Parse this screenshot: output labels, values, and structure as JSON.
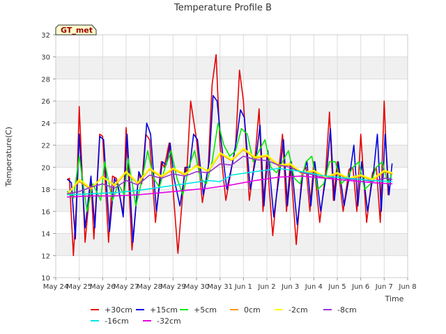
{
  "chart_data": {
    "type": "line",
    "title": "Temperature Profile B",
    "xlabel": "Time",
    "ylabel": "Temperature(C)",
    "badge": "GT_met",
    "x_start": "2024-05-24",
    "x_end": "2024-06-08",
    "xticks": [
      "May 24",
      "May 25",
      "May 26",
      "May 27",
      "May 28",
      "May 29",
      "May 30",
      "May 31",
      "Jun 1",
      "Jun 2",
      "Jun 3",
      "Jun 4",
      "Jun 5",
      "Jun 6",
      "Jun 7",
      "Jun 8"
    ],
    "ylim": [
      10,
      32
    ],
    "yticks": [
      10,
      12,
      14,
      16,
      18,
      20,
      22,
      24,
      26,
      28,
      30,
      32
    ],
    "grid": true,
    "banding": true,
    "legend_position": "bottom",
    "series": [
      {
        "name": "+30cm",
        "color": "#e60000",
        "width": 1.6,
        "x": [
          "2024-05-24T12:00",
          "2024-05-24T14:00",
          "2024-05-24T18:00",
          "2024-05-24T21:00",
          "2024-05-25T00:00",
          "2024-05-25T06:00",
          "2024-05-25T12:00",
          "2024-05-25T15:00",
          "2024-05-25T21:00",
          "2024-05-26T00:00",
          "2024-05-26T06:00",
          "2024-05-26T10:00",
          "2024-05-26T14:00",
          "2024-05-26T21:00",
          "2024-05-27T00:00",
          "2024-05-27T06:00",
          "2024-05-27T13:00",
          "2024-05-27T16:00",
          "2024-05-27T20:00",
          "2024-05-28T00:00",
          "2024-05-28T06:00",
          "2024-05-28T12:00",
          "2024-05-28T15:00",
          "2024-05-28T20:00",
          "2024-05-29T00:00",
          "2024-05-29T05:00",
          "2024-05-29T12:00",
          "2024-05-29T14:00",
          "2024-05-29T18:00",
          "2024-05-30T00:00",
          "2024-05-30T06:00",
          "2024-05-30T12:00",
          "2024-05-30T16:00",
          "2024-05-30T20:00",
          "2024-05-31T00:00",
          "2024-05-31T06:00",
          "2024-05-31T12:00",
          "2024-05-31T16:00",
          "2024-05-31T20:00",
          "2024-06-01T00:00",
          "2024-06-01T06:00",
          "2024-06-01T12:00",
          "2024-06-01T16:00",
          "2024-06-01T20:00",
          "2024-06-02T00:00",
          "2024-06-02T06:00",
          "2024-06-02T12:00",
          "2024-06-02T16:00",
          "2024-06-02T20:00",
          "2024-06-03T00:00",
          "2024-06-03T06:00",
          "2024-06-03T12:00",
          "2024-06-03T16:00",
          "2024-06-03T20:00",
          "2024-06-04T00:00",
          "2024-06-04T06:00",
          "2024-06-04T12:00",
          "2024-06-04T16:00",
          "2024-06-04T20:00",
          "2024-06-05T00:00",
          "2024-06-05T06:00",
          "2024-06-05T12:00",
          "2024-06-05T16:00",
          "2024-06-05T20:00",
          "2024-06-06T00:00",
          "2024-06-06T06:00",
          "2024-06-06T12:00",
          "2024-06-06T16:00",
          "2024-06-06T20:00",
          "2024-06-07T00:00",
          "2024-06-07T04:00"
        ],
        "y": [
          18.9,
          19.0,
          12.0,
          16.5,
          25.5,
          13.2,
          19.0,
          13.5,
          23.0,
          22.8,
          13.2,
          19.2,
          19.0,
          15.8,
          23.6,
          12.5,
          19.5,
          18.5,
          23.0,
          22.5,
          15.0,
          20.5,
          20.0,
          22.2,
          18.0,
          12.2,
          20.0,
          19.5,
          26.0,
          22.5,
          16.8,
          20.0,
          27.5,
          30.2,
          22.0,
          17.0,
          20.0,
          22.0,
          28.8,
          26.0,
          17.0,
          21.0,
          25.3,
          16.0,
          21.0,
          13.8,
          19.5,
          23.0,
          16.0,
          20.5,
          13.0,
          19.5,
          20.0,
          16.0,
          20.5,
          15.0,
          19.5,
          25.0,
          17.0,
          20.5,
          16.0,
          19.8,
          20.0,
          16.0,
          23.0,
          15.0,
          19.5,
          20.0,
          15.0,
          26.0,
          17.5
        ]
      },
      {
        "name": "+15cm",
        "color": "#0000e0",
        "width": 1.6,
        "x": [
          "2024-05-24T12:00",
          "2024-05-24T16:00",
          "2024-05-24T20:00",
          "2024-05-25T00:00",
          "2024-05-25T06:00",
          "2024-05-25T12:00",
          "2024-05-25T16:00",
          "2024-05-25T21:00",
          "2024-05-26T01:00",
          "2024-05-26T07:00",
          "2024-05-26T12:00",
          "2024-05-26T16:00",
          "2024-05-26T21:00",
          "2024-05-27T01:00",
          "2024-05-27T07:00",
          "2024-05-27T13:00",
          "2024-05-27T17:00",
          "2024-05-27T21:00",
          "2024-05-28T01:00",
          "2024-05-28T07:00",
          "2024-05-28T13:00",
          "2024-05-28T17:00",
          "2024-05-28T21:00",
          "2024-05-29T01:00",
          "2024-05-29T07:00",
          "2024-05-29T13:00",
          "2024-05-29T17:00",
          "2024-05-29T21:00",
          "2024-05-30T01:00",
          "2024-05-30T07:00",
          "2024-05-30T13:00",
          "2024-05-30T17:00",
          "2024-05-30T21:00",
          "2024-05-31T01:00",
          "2024-05-31T07:00",
          "2024-05-31T13:00",
          "2024-05-31T17:00",
          "2024-05-31T21:00",
          "2024-06-01T01:00",
          "2024-06-01T07:00",
          "2024-06-01T13:00",
          "2024-06-01T17:00",
          "2024-06-01T21:00",
          "2024-06-02T01:00",
          "2024-06-02T07:00",
          "2024-06-02T13:00",
          "2024-06-02T17:00",
          "2024-06-02T21:00",
          "2024-06-03T01:00",
          "2024-06-03T07:00",
          "2024-06-03T13:00",
          "2024-06-03T17:00",
          "2024-06-03T21:00",
          "2024-06-04T01:00",
          "2024-06-04T07:00",
          "2024-06-04T13:00",
          "2024-06-04T17:00",
          "2024-06-04T21:00",
          "2024-06-05T01:00",
          "2024-06-05T07:00",
          "2024-06-05T13:00",
          "2024-06-05T17:00",
          "2024-06-05T21:00",
          "2024-06-06T01:00",
          "2024-06-06T07:00",
          "2024-06-06T13:00",
          "2024-06-06T17:00",
          "2024-06-06T21:00",
          "2024-06-07T01:00",
          "2024-06-07T05:00",
          "2024-06-07T08:00"
        ],
        "y": [
          18.9,
          18.6,
          13.5,
          23.0,
          14.5,
          19.2,
          14.5,
          22.8,
          22.5,
          14.2,
          19.0,
          18.2,
          15.5,
          23.0,
          13.2,
          19.6,
          18.8,
          24.0,
          23.0,
          16.0,
          20.5,
          20.2,
          22.2,
          19.0,
          16.5,
          20.0,
          20.0,
          23.0,
          22.5,
          17.5,
          20.5,
          26.5,
          26.0,
          22.5,
          18.0,
          20.5,
          22.5,
          25.2,
          24.5,
          18.0,
          21.0,
          23.8,
          16.5,
          21.5,
          15.5,
          19.5,
          22.5,
          16.5,
          20.5,
          14.8,
          19.5,
          20.5,
          16.5,
          20.5,
          16.0,
          19.5,
          23.5,
          17.0,
          20.5,
          16.5,
          19.5,
          22.0,
          16.5,
          20.5,
          16.0,
          19.5,
          23.0,
          16.0,
          23.0,
          17.5,
          20.3
        ]
      },
      {
        "name": "+5cm",
        "color": "#00e600",
        "width": 1.6,
        "x": [
          "2024-05-24T12:00",
          "2024-05-24T18:00",
          "2024-05-25T00:00",
          "2024-05-25T08:00",
          "2024-05-25T14:00",
          "2024-05-25T22:00",
          "2024-05-26T02:00",
          "2024-05-26T10:00",
          "2024-05-26T16:00",
          "2024-05-26T22:00",
          "2024-05-27T02:00",
          "2024-05-27T10:00",
          "2024-05-27T16:00",
          "2024-05-27T22:00",
          "2024-05-28T04:00",
          "2024-05-28T10:00",
          "2024-05-28T16:00",
          "2024-05-28T22:00",
          "2024-05-29T04:00",
          "2024-05-29T10:00",
          "2024-05-29T16:00",
          "2024-05-29T22:00",
          "2024-05-30T04:00",
          "2024-05-30T10:00",
          "2024-05-30T16:00",
          "2024-05-30T22:00",
          "2024-05-31T04:00",
          "2024-05-31T10:00",
          "2024-05-31T16:00",
          "2024-05-31T22:00",
          "2024-06-01T04:00",
          "2024-06-01T10:00",
          "2024-06-01T16:00",
          "2024-06-01T22:00",
          "2024-06-02T04:00",
          "2024-06-02T10:00",
          "2024-06-02T16:00",
          "2024-06-02T22:00",
          "2024-06-03T04:00",
          "2024-06-03T10:00",
          "2024-06-03T16:00",
          "2024-06-03T22:00",
          "2024-06-04T04:00",
          "2024-06-04T10:00",
          "2024-06-04T16:00",
          "2024-06-04T22:00",
          "2024-06-05T04:00",
          "2024-06-05T10:00",
          "2024-06-05T16:00",
          "2024-06-05T22:00",
          "2024-06-06T04:00",
          "2024-06-06T10:00",
          "2024-06-06T16:00",
          "2024-06-06T22:00",
          "2024-06-07T04:00",
          "2024-06-07T08:00"
        ],
        "y": [
          17.8,
          17.2,
          21.0,
          16.0,
          18.5,
          17.0,
          20.5,
          17.0,
          18.5,
          17.5,
          20.8,
          16.5,
          18.8,
          21.5,
          19.0,
          18.2,
          20.0,
          21.5,
          19.0,
          17.5,
          20.0,
          21.5,
          19.0,
          18.5,
          20.5,
          24.0,
          22.0,
          21.0,
          21.5,
          23.5,
          23.0,
          20.5,
          21.5,
          22.5,
          20.0,
          19.5,
          20.5,
          21.5,
          19.0,
          18.5,
          20.5,
          21.0,
          18.0,
          18.5,
          20.5,
          20.5,
          18.5,
          19.0,
          20.0,
          20.5,
          18.0,
          18.5,
          20.0,
          20.5,
          18.5,
          19.5
        ]
      },
      {
        "name": "0cm",
        "color": "#ff9900",
        "width": 1.6,
        "x": [
          "2024-05-24T12:00",
          "2024-05-25T00:00",
          "2024-05-25T12:00",
          "2024-05-26T00:00",
          "2024-05-26T12:00",
          "2024-05-27T00:00",
          "2024-05-27T12:00",
          "2024-05-28T00:00",
          "2024-05-28T12:00",
          "2024-05-29T00:00",
          "2024-05-29T12:00",
          "2024-05-30T00:00",
          "2024-05-30T12:00",
          "2024-05-31T00:00",
          "2024-05-31T12:00",
          "2024-06-01T00:00",
          "2024-06-01T12:00",
          "2024-06-02T00:00",
          "2024-06-02T12:00",
          "2024-06-03T00:00",
          "2024-06-03T12:00",
          "2024-06-04T00:00",
          "2024-06-04T12:00",
          "2024-06-05T00:00",
          "2024-06-05T12:00",
          "2024-06-06T00:00",
          "2024-06-06T12:00",
          "2024-06-07T00:00",
          "2024-06-07T08:00"
        ],
        "y": [
          17.6,
          18.7,
          18.0,
          19.2,
          18.3,
          19.5,
          18.5,
          19.8,
          19.1,
          19.8,
          19.3,
          20.2,
          19.6,
          21.2,
          20.6,
          21.6,
          20.8,
          21.0,
          20.1,
          20.2,
          19.4,
          19.6,
          19.0,
          19.4,
          18.9,
          19.2,
          18.8,
          19.6,
          19.4
        ]
      },
      {
        "name": "-2cm",
        "color": "#ffff00",
        "width": 2.2,
        "x": [
          "2024-05-24T12:00",
          "2024-05-25T00:00",
          "2024-05-25T12:00",
          "2024-05-26T00:00",
          "2024-05-26T12:00",
          "2024-05-27T00:00",
          "2024-05-27T12:00",
          "2024-05-28T00:00",
          "2024-05-28T12:00",
          "2024-05-29T00:00",
          "2024-05-29T12:00",
          "2024-05-30T00:00",
          "2024-05-30T12:00",
          "2024-05-31T00:00",
          "2024-05-31T12:00",
          "2024-06-01T00:00",
          "2024-06-01T12:00",
          "2024-06-02T00:00",
          "2024-06-02T12:00",
          "2024-06-03T00:00",
          "2024-06-03T12:00",
          "2024-06-04T00:00",
          "2024-06-04T12:00",
          "2024-06-05T00:00",
          "2024-06-05T12:00",
          "2024-06-06T00:00",
          "2024-06-06T12:00",
          "2024-06-07T00:00",
          "2024-06-07T08:00"
        ],
        "y": [
          17.5,
          18.9,
          18.1,
          19.1,
          18.4,
          19.6,
          18.6,
          19.9,
          19.2,
          19.9,
          19.4,
          20.1,
          19.7,
          21.3,
          20.7,
          21.7,
          20.9,
          21.1,
          20.2,
          20.3,
          19.5,
          19.7,
          19.1,
          19.5,
          19.0,
          19.3,
          18.9,
          19.7,
          19.5
        ]
      },
      {
        "name": "-8cm",
        "color": "#9933cc",
        "width": 1.6,
        "x": [
          "2024-05-24T12:00",
          "2024-05-25T00:00",
          "2024-05-25T12:00",
          "2024-05-26T00:00",
          "2024-05-26T12:00",
          "2024-05-27T00:00",
          "2024-05-27T12:00",
          "2024-05-28T00:00",
          "2024-05-28T12:00",
          "2024-05-29T00:00",
          "2024-05-29T12:00",
          "2024-05-30T00:00",
          "2024-05-30T12:00",
          "2024-05-31T00:00",
          "2024-05-31T12:00",
          "2024-06-01T00:00",
          "2024-06-01T12:00",
          "2024-06-02T00:00",
          "2024-06-02T12:00",
          "2024-06-03T00:00",
          "2024-06-03T12:00",
          "2024-06-04T00:00",
          "2024-06-04T12:00",
          "2024-06-05T00:00",
          "2024-06-05T12:00",
          "2024-06-06T00:00",
          "2024-06-06T12:00",
          "2024-06-07T00:00",
          "2024-06-07T08:00"
        ],
        "y": [
          17.6,
          17.8,
          18.2,
          18.5,
          18.1,
          18.8,
          18.4,
          19.3,
          19.0,
          19.4,
          19.2,
          19.6,
          19.5,
          20.3,
          20.2,
          21.0,
          20.7,
          20.6,
          20.2,
          20.0,
          19.5,
          19.3,
          19.0,
          19.1,
          18.9,
          18.9,
          18.7,
          19.0,
          18.9
        ]
      },
      {
        "name": "-16cm",
        "color": "#00e6e6",
        "width": 1.6,
        "x": [
          "2024-05-24T12:00",
          "2024-05-25T12:00",
          "2024-05-26T12:00",
          "2024-05-27T12:00",
          "2024-05-28T12:00",
          "2024-05-29T12:00",
          "2024-05-30T12:00",
          "2024-05-31T00:00",
          "2024-05-31T12:00",
          "2024-06-01T12:00",
          "2024-06-02T12:00",
          "2024-06-03T12:00",
          "2024-06-04T12:00",
          "2024-06-05T12:00",
          "2024-06-06T12:00",
          "2024-06-07T08:00"
        ],
        "y": [
          17.5,
          17.6,
          17.7,
          17.9,
          18.2,
          18.5,
          18.8,
          18.7,
          19.3,
          19.6,
          19.9,
          19.6,
          19.2,
          19.0,
          18.8,
          18.7
        ]
      },
      {
        "name": "-32cm",
        "color": "#e600e6",
        "width": 1.6,
        "x": [
          "2024-05-24T12:00",
          "2024-05-25T12:00",
          "2024-05-26T12:00",
          "2024-05-27T12:00",
          "2024-05-28T12:00",
          "2024-05-29T12:00",
          "2024-05-30T12:00",
          "2024-05-31T12:00",
          "2024-06-01T12:00",
          "2024-06-02T12:00",
          "2024-06-03T12:00",
          "2024-06-04T12:00",
          "2024-06-05T12:00",
          "2024-06-06T12:00",
          "2024-06-07T08:00"
        ],
        "y": [
          17.3,
          17.4,
          17.4,
          17.5,
          17.7,
          17.9,
          18.1,
          18.4,
          18.8,
          19.1,
          19.2,
          19.0,
          18.8,
          18.6,
          18.5
        ]
      }
    ]
  }
}
